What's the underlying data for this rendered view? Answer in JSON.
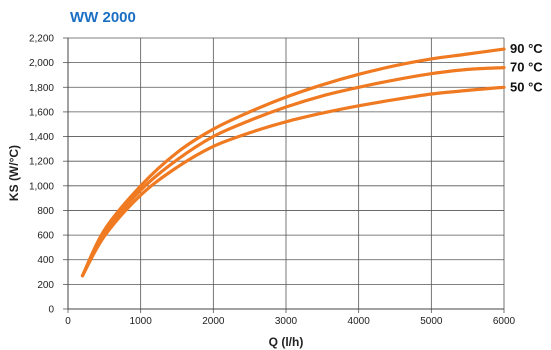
{
  "chart_data": {
    "type": "line",
    "title": "WW 2000",
    "xlabel": "Q (l/h)",
    "ylabel": "KS (W/°C)",
    "xlim": [
      0,
      6000
    ],
    "ylim": [
      0,
      2200
    ],
    "xticks": [
      "0",
      "1000",
      "2000",
      "3000",
      "4000",
      "5000",
      "6000"
    ],
    "yticks": [
      "0",
      "200",
      "400",
      "600",
      "800",
      "1,000",
      "1,200",
      "1,400",
      "1,600",
      "1,800",
      "2,000",
      "2,200"
    ],
    "grid": true,
    "series": [
      {
        "name": "90 °C",
        "x": [
          200,
          500,
          1000,
          1500,
          2000,
          2500,
          3000,
          3500,
          4000,
          4500,
          5000,
          5500,
          6000
        ],
        "y": [
          270,
          640,
          1000,
          1270,
          1460,
          1600,
          1720,
          1820,
          1905,
          1975,
          2030,
          2070,
          2110
        ]
      },
      {
        "name": "70 °C",
        "x": [
          200,
          500,
          1000,
          1500,
          2000,
          2500,
          3000,
          3500,
          4000,
          4500,
          5000,
          5500,
          6000
        ],
        "y": [
          270,
          620,
          965,
          1210,
          1400,
          1530,
          1640,
          1730,
          1800,
          1860,
          1910,
          1945,
          1960
        ]
      },
      {
        "name": "50 °C",
        "x": [
          200,
          500,
          1000,
          1500,
          2000,
          2500,
          3000,
          3500,
          4000,
          4500,
          5000,
          5500,
          6000
        ],
        "y": [
          270,
          590,
          925,
          1150,
          1320,
          1430,
          1520,
          1590,
          1650,
          1700,
          1745,
          1775,
          1800
        ]
      }
    ],
    "line_color": "#f07a21",
    "title_color": "#1a6fc4"
  }
}
